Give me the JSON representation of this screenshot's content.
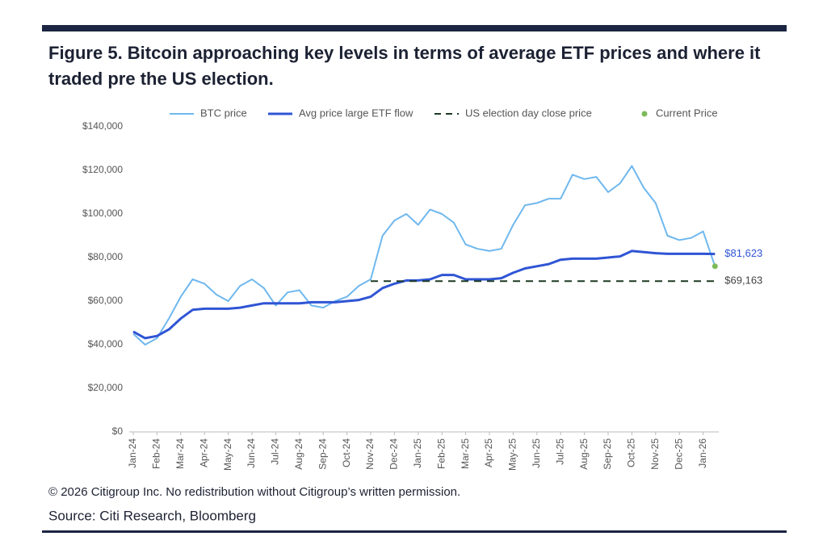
{
  "chart_data": {
    "type": "line",
    "title": "Figure 5. Bitcoin approaching key levels in terms of average ETF prices and where it traded pre the US election.",
    "footnote": "© 2026 Citigroup Inc. No redistribution without Citigroup’s written permission.",
    "source": "Source: Citi Research, Bloomberg",
    "categories": [
      "Jan-24",
      null,
      "Feb-24",
      null,
      "Mar-24",
      null,
      "Apr-24",
      null,
      "May-24",
      null,
      "Jun-24",
      null,
      "Jul-24",
      null,
      "Aug-24",
      null,
      "Sep-24",
      null,
      "Oct-24",
      null,
      "Nov-24",
      null,
      "Dec-24",
      null,
      "Jan-25",
      null,
      "Feb-25",
      null,
      "Mar-25",
      null,
      "Apr-25",
      null,
      "May-25",
      null,
      "Jun-25",
      null,
      "Jul-25",
      null,
      "Aug-25",
      null,
      "Sep-25",
      null,
      "Oct-25",
      null,
      "Nov-25",
      null,
      "Dec-25",
      null,
      "Jan-26",
      null
    ],
    "ylim": [
      0,
      140000
    ],
    "yticks": [
      {
        "value": 0,
        "label": "$0"
      },
      {
        "value": 20000,
        "label": "$20,000"
      },
      {
        "value": 40000,
        "label": "$40,000"
      },
      {
        "value": 60000,
        "label": "$60,000"
      },
      {
        "value": 80000,
        "label": "$80,000"
      },
      {
        "value": 100000,
        "label": "$100,000"
      },
      {
        "value": 120000,
        "label": "$120,000"
      },
      {
        "value": 140000,
        "label": "$140,000"
      }
    ],
    "grid": false,
    "series": [
      {
        "name": "BTC price",
        "color": "#6fb8ee",
        "style": "solid",
        "width": 2,
        "values": [
          45000,
          40000,
          43000,
          52000,
          62000,
          70000,
          68000,
          63000,
          60000,
          67000,
          70000,
          66000,
          58000,
          64000,
          65000,
          58000,
          57000,
          60000,
          62000,
          67000,
          70000,
          90000,
          97000,
          100000,
          95000,
          102000,
          100000,
          96000,
          86000,
          84000,
          83000,
          84000,
          95000,
          104000,
          105000,
          107000,
          107000,
          118000,
          116000,
          117000,
          110000,
          114000,
          122000,
          112000,
          105000,
          90000,
          88000,
          89000,
          92000,
          76000
        ]
      },
      {
        "name": "Avg price large ETF flow",
        "color": "#2f55d4",
        "style": "solid",
        "width": 3,
        "values": [
          46000,
          43000,
          44000,
          47000,
          52000,
          56000,
          56500,
          56500,
          56500,
          57000,
          58000,
          59000,
          59000,
          59000,
          59000,
          59500,
          59500,
          59500,
          60000,
          60500,
          62000,
          66000,
          68000,
          69500,
          69500,
          70000,
          72000,
          72000,
          70000,
          70000,
          70000,
          70500,
          73000,
          75000,
          76000,
          77000,
          79000,
          79500,
          79500,
          79500,
          80000,
          80500,
          83000,
          82500,
          82000,
          81700,
          81700,
          81700,
          81700,
          81623
        ],
        "value_labels": [
          null,
          null,
          null,
          null,
          null,
          null,
          null,
          null,
          null,
          null,
          null,
          null,
          null,
          null,
          null,
          null,
          null,
          null,
          null,
          null,
          null,
          null,
          null,
          null,
          null,
          null,
          null,
          null,
          null,
          null,
          null,
          null,
          null,
          null,
          null,
          null,
          null,
          null,
          null,
          null,
          null,
          null,
          null,
          null,
          null,
          null,
          null,
          null,
          null,
          "$81,623"
        ]
      },
      {
        "name": "US election day close price",
        "color": "#1d3a24",
        "style": "dashed",
        "width": 2,
        "values": [
          null,
          null,
          null,
          null,
          null,
          null,
          null,
          null,
          null,
          null,
          null,
          null,
          null,
          null,
          null,
          null,
          null,
          null,
          null,
          null,
          69163,
          69163,
          69163,
          69163,
          69163,
          69163,
          69163,
          69163,
          69163,
          69163,
          69163,
          69163,
          69163,
          69163,
          69163,
          69163,
          69163,
          69163,
          69163,
          69163,
          69163,
          69163,
          69163,
          69163,
          69163,
          69163,
          69163,
          69163,
          69163,
          69163
        ],
        "value_labels": [
          null,
          null,
          null,
          null,
          null,
          null,
          null,
          null,
          null,
          null,
          null,
          null,
          null,
          null,
          null,
          null,
          null,
          null,
          null,
          null,
          null,
          null,
          null,
          null,
          null,
          null,
          null,
          null,
          null,
          null,
          null,
          null,
          null,
          null,
          null,
          null,
          null,
          null,
          null,
          null,
          null,
          null,
          null,
          null,
          null,
          null,
          null,
          null,
          null,
          "$69,163"
        ]
      },
      {
        "name": "Current Price",
        "color": "#7dbb5a",
        "style": "dot",
        "width": 0,
        "values": [
          null,
          null,
          null,
          null,
          null,
          null,
          null,
          null,
          null,
          null,
          null,
          null,
          null,
          null,
          null,
          null,
          null,
          null,
          null,
          null,
          null,
          null,
          null,
          null,
          null,
          null,
          null,
          null,
          null,
          null,
          null,
          null,
          null,
          null,
          null,
          null,
          null,
          null,
          null,
          null,
          null,
          null,
          null,
          null,
          null,
          null,
          null,
          null,
          null,
          76000
        ]
      }
    ]
  }
}
